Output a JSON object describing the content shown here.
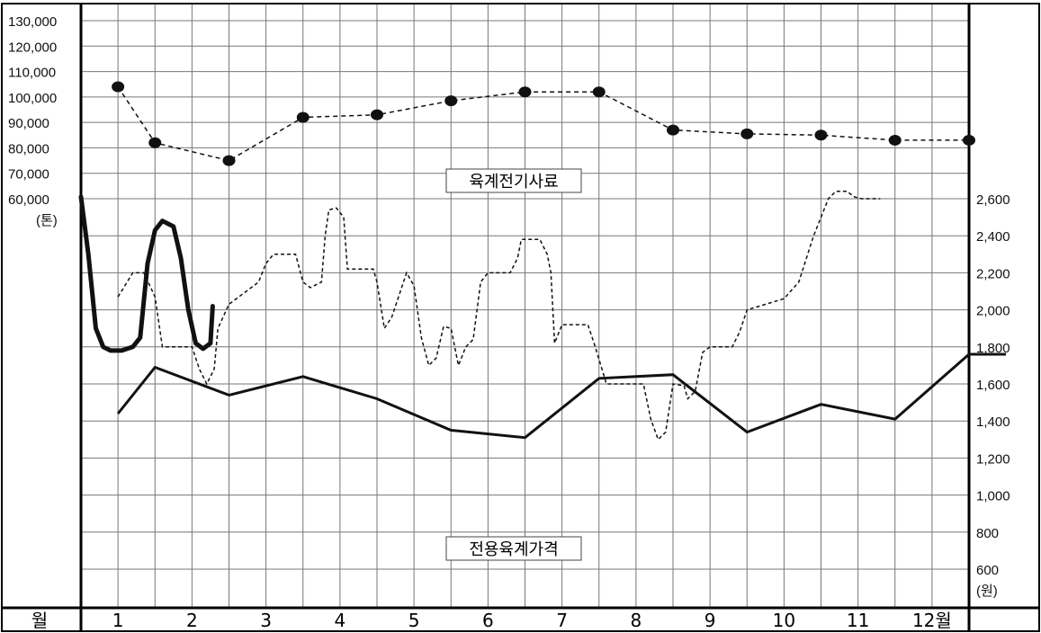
{
  "chart_data": {
    "type": "line",
    "title": "",
    "x": [
      "1",
      "2",
      "3",
      "4",
      "5",
      "6",
      "7",
      "8",
      "9",
      "10",
      "11",
      "12월"
    ],
    "x_axis_header": "월",
    "y_left": {
      "unit": "(톤)",
      "ticks": [
        "130,000",
        "120,000",
        "110,000",
        "100,000",
        "90,000",
        "80,000",
        "70,000",
        "60,000"
      ],
      "range": [
        60000,
        130000
      ]
    },
    "y_right": {
      "unit": "(원)",
      "ticks": [
        "2,600",
        "2,400",
        "2,200",
        "2,000",
        "1,800",
        "1,600",
        "1,400",
        "1,200",
        "1,000",
        "800",
        "600"
      ],
      "range": [
        600,
        2600
      ]
    },
    "grid": true,
    "series": [
      {
        "name": "육계전기사료",
        "axis": "left",
        "style": "dashed-with-markers",
        "points": [
          [
            0.5,
            104000
          ],
          [
            1.0,
            82000
          ],
          [
            2.0,
            75000
          ],
          [
            3.0,
            92000
          ],
          [
            4.0,
            93000
          ],
          [
            5.0,
            98500
          ],
          [
            6.0,
            102000
          ],
          [
            7.0,
            102000
          ],
          [
            8.0,
            87000
          ],
          [
            9.0,
            85500
          ],
          [
            10.0,
            85000
          ],
          [
            11.0,
            83000
          ],
          [
            12.0,
            83000
          ]
        ]
      },
      {
        "name": "전용육계가격",
        "axis": "right",
        "style": "solid",
        "points": [
          [
            0.5,
            1440
          ],
          [
            1.0,
            1690
          ],
          [
            2.0,
            1540
          ],
          [
            3.0,
            1640
          ],
          [
            4.0,
            1520
          ],
          [
            5.0,
            1350
          ],
          [
            6.0,
            1310
          ],
          [
            7.0,
            1630
          ],
          [
            8.0,
            1650
          ],
          [
            9.0,
            1340
          ],
          [
            10.0,
            1490
          ],
          [
            11.0,
            1410
          ],
          [
            12.0,
            1760
          ],
          [
            12.5,
            1760
          ]
        ]
      },
      {
        "axis": "right",
        "style": "dashed",
        "points": [
          [
            0.5,
            2070
          ],
          [
            0.7,
            2200
          ],
          [
            0.85,
            2200
          ],
          [
            1.0,
            2070
          ],
          [
            1.1,
            1800
          ],
          [
            1.5,
            1800
          ],
          [
            1.6,
            1680
          ],
          [
            1.7,
            1600
          ],
          [
            1.8,
            1680
          ],
          [
            1.85,
            1900
          ],
          [
            2.0,
            2030
          ],
          [
            2.4,
            2150
          ],
          [
            2.5,
            2250
          ],
          [
            2.6,
            2300
          ],
          [
            2.9,
            2300
          ],
          [
            3.0,
            2150
          ],
          [
            3.1,
            2120
          ],
          [
            3.25,
            2150
          ],
          [
            3.3,
            2400
          ],
          [
            3.35,
            2540
          ],
          [
            3.45,
            2550
          ],
          [
            3.55,
            2500
          ],
          [
            3.6,
            2220
          ],
          [
            3.95,
            2220
          ],
          [
            4.0,
            2150
          ],
          [
            4.1,
            1900
          ],
          [
            4.2,
            1960
          ],
          [
            4.4,
            2200
          ],
          [
            4.5,
            2130
          ],
          [
            4.6,
            1850
          ],
          [
            4.7,
            1700
          ],
          [
            4.8,
            1740
          ],
          [
            4.9,
            1910
          ],
          [
            5.0,
            1900
          ],
          [
            5.1,
            1700
          ],
          [
            5.2,
            1800
          ],
          [
            5.3,
            1840
          ],
          [
            5.4,
            2150
          ],
          [
            5.5,
            2200
          ],
          [
            5.8,
            2200
          ],
          [
            5.9,
            2280
          ],
          [
            5.95,
            2380
          ],
          [
            6.2,
            2380
          ],
          [
            6.3,
            2300
          ],
          [
            6.35,
            2200
          ],
          [
            6.4,
            1820
          ],
          [
            6.5,
            1920
          ],
          [
            6.85,
            1920
          ],
          [
            6.95,
            1800
          ],
          [
            7.1,
            1600
          ],
          [
            7.6,
            1600
          ],
          [
            7.7,
            1410
          ],
          [
            7.8,
            1300
          ],
          [
            7.9,
            1340
          ],
          [
            8.0,
            1600
          ],
          [
            8.15,
            1590
          ],
          [
            8.2,
            1520
          ],
          [
            8.3,
            1560
          ],
          [
            8.4,
            1770
          ],
          [
            8.5,
            1800
          ],
          [
            8.8,
            1800
          ],
          [
            8.9,
            1880
          ],
          [
            9.0,
            2000
          ],
          [
            9.5,
            2060
          ],
          [
            9.7,
            2150
          ],
          [
            9.9,
            2400
          ],
          [
            10.1,
            2600
          ],
          [
            10.2,
            2640
          ],
          [
            10.35,
            2640
          ],
          [
            10.45,
            2610
          ],
          [
            10.55,
            2600
          ],
          [
            10.8,
            2600
          ]
        ]
      },
      {
        "axis": "right",
        "style": "bold-solid",
        "points": [
          [
            0.0,
            2610
          ],
          [
            0.1,
            2300
          ],
          [
            0.2,
            1900
          ],
          [
            0.3,
            1800
          ],
          [
            0.4,
            1780
          ],
          [
            0.55,
            1780
          ],
          [
            0.7,
            1800
          ],
          [
            0.8,
            1850
          ],
          [
            0.9,
            2250
          ],
          [
            1.0,
            2430
          ],
          [
            1.1,
            2480
          ],
          [
            1.25,
            2450
          ],
          [
            1.35,
            2280
          ],
          [
            1.45,
            2000
          ],
          [
            1.55,
            1820
          ],
          [
            1.65,
            1790
          ],
          [
            1.75,
            1820
          ],
          [
            1.78,
            2020
          ]
        ]
      }
    ]
  }
}
